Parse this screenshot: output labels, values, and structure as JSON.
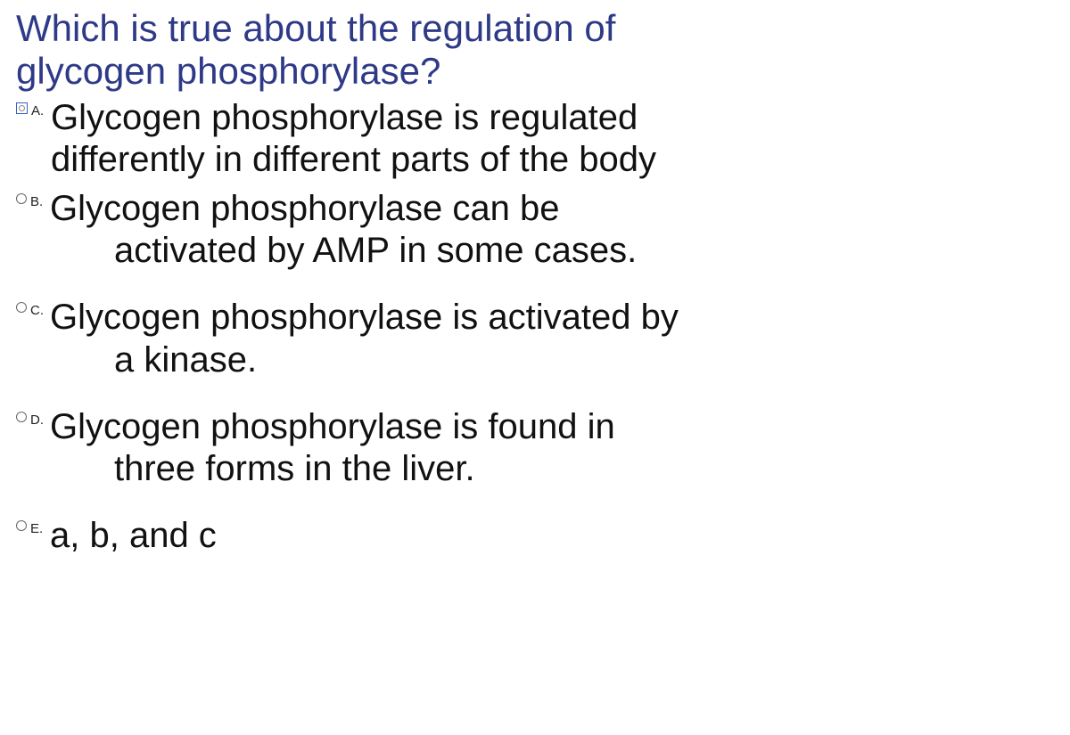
{
  "question": {
    "title_line1": "Which is true about the regulation of",
    "title_line2": "glycogen phosphorylase?",
    "title_color": "#2e3a87",
    "title_fontsize": 42
  },
  "options": [
    {
      "letter": "A.",
      "line1": "Glycogen phosphorylase is regulated",
      "line2": "differently in different parts of the body",
      "line2_indented": false,
      "radio_style": "square",
      "gap_before": false
    },
    {
      "letter": "B.",
      "line1": "Glycogen phosphorylase can be",
      "line2": "activated by AMP in some cases.",
      "line2_indented": true,
      "radio_style": "circle",
      "gap_before": false
    },
    {
      "letter": "C.",
      "line1": "Glycogen phosphorylase is activated by",
      "line2": "a kinase.",
      "line2_indented": true,
      "radio_style": "circle",
      "gap_before": true
    },
    {
      "letter": "D.",
      "line1": "Glycogen phosphorylase is found in",
      "line2": "three forms in the liver.",
      "line2_indented": true,
      "radio_style": "circle",
      "gap_before": true
    },
    {
      "letter": "E.",
      "line1": "a, b, and c",
      "line2": "",
      "line2_indented": false,
      "radio_style": "circle",
      "gap_before": true
    }
  ],
  "colors": {
    "text": "#111111",
    "background": "#ffffff",
    "radio_border": "#666666",
    "square_border": "#3a5fc8"
  },
  "answer_fontsize": 40
}
